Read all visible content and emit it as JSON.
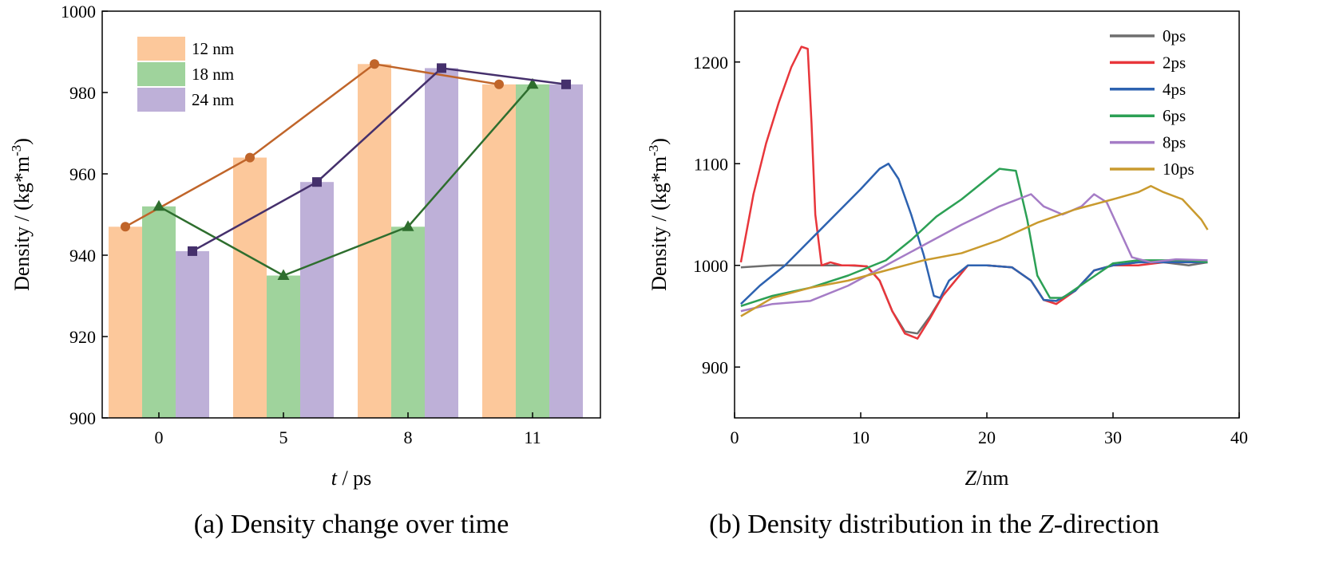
{
  "chart_data": [
    {
      "type": "bar",
      "caption": {
        "prefix": "(a) Density change over time"
      },
      "xlabel": {
        "var": "t",
        "unit": " / ps"
      },
      "ylabel": {
        "text": "Density / (kg*m",
        "sup": "-3",
        "tail": ")"
      },
      "categories": [
        "0",
        "5",
        "8",
        "11"
      ],
      "ylim": [
        900,
        1000
      ],
      "yticks": [
        900,
        920,
        940,
        960,
        980,
        1000
      ],
      "grid": false,
      "legend_position": "top-left",
      "series": [
        {
          "name": "12 nm",
          "color": "#FCC89B",
          "line_color": "#C0652A",
          "marker": "circle",
          "values": [
            947,
            964,
            987,
            982
          ]
        },
        {
          "name": "18 nm",
          "color": "#9FD39C",
          "line_color": "#2E6E2E",
          "marker": "triangle",
          "values": [
            952,
            935,
            947,
            982
          ]
        },
        {
          "name": "24 nm",
          "color": "#BEB0D8",
          "line_color": "#45306C",
          "marker": "square",
          "values": [
            941,
            958,
            986,
            982
          ]
        }
      ]
    },
    {
      "type": "line",
      "caption": {
        "prefix": "(b) Density distribution in the ",
        "var": "Z",
        "suffix": "-direction"
      },
      "xlabel": {
        "var": "Z",
        "unit": "/nm"
      },
      "ylabel": {
        "text": "Density / (kg*m",
        "sup": "-3",
        "tail": ")"
      },
      "xlim": [
        0,
        40
      ],
      "ylim": [
        850,
        1250
      ],
      "xticks": [
        0,
        10,
        20,
        30,
        40
      ],
      "yticks": [
        900,
        1000,
        1100,
        1200
      ],
      "grid": false,
      "legend_position": "top-right",
      "series": [
        {
          "name": "0ps",
          "color": "#6E6E6E",
          "x": [
            0.5,
            3,
            6,
            9,
            10.5,
            11.5,
            12.5,
            13.5,
            14.5,
            15.5,
            16.5,
            17.5,
            18.5,
            20,
            22,
            23.5,
            24.5,
            25.5,
            27,
            28.5,
            30,
            32,
            34,
            36,
            37.5
          ],
          "y": [
            998,
            1000,
            1000,
            1000,
            999,
            985,
            955,
            935,
            933,
            950,
            970,
            985,
            1000,
            1000,
            998,
            985,
            966,
            965,
            975,
            995,
            1000,
            1003,
            1003,
            1000,
            1003
          ]
        },
        {
          "name": "2ps",
          "color": "#E8363B",
          "x": [
            0.5,
            1.5,
            2.5,
            3.5,
            4.5,
            5.3,
            5.8,
            6.1,
            6.4,
            6.9,
            7.6,
            8.5,
            9.5,
            10.5,
            11.5,
            12.5,
            13.5,
            14.5,
            15.5,
            16.5,
            17.5,
            18.5,
            20,
            22,
            23.5,
            24.5,
            25.5,
            27,
            28.5,
            30,
            32,
            34,
            36,
            37.5
          ],
          "y": [
            1003,
            1070,
            1120,
            1160,
            1195,
            1215,
            1213,
            1140,
            1050,
            1000,
            1003,
            1000,
            1000,
            999,
            985,
            955,
            933,
            928,
            948,
            970,
            985,
            1000,
            1000,
            998,
            985,
            966,
            962,
            975,
            995,
            1000,
            1000,
            1003,
            1003,
            1003
          ]
        },
        {
          "name": "4ps",
          "color": "#2D62B0",
          "x": [
            0.5,
            2,
            4,
            6,
            8,
            10,
            11.5,
            12.2,
            13,
            14,
            15,
            15.8,
            16.3,
            17,
            18.5,
            20,
            22,
            23.5,
            24.5,
            25.5,
            27,
            28.5,
            30,
            32,
            34,
            36,
            37.5
          ],
          "y": [
            962,
            980,
            1000,
            1025,
            1050,
            1075,
            1095,
            1100,
            1085,
            1050,
            1010,
            970,
            968,
            985,
            1000,
            1000,
            998,
            985,
            966,
            965,
            975,
            995,
            1000,
            1003,
            1003,
            1003,
            1003
          ]
        },
        {
          "name": "6ps",
          "color": "#2CA055",
          "x": [
            0.5,
            3,
            6,
            9,
            12,
            14,
            16,
            18,
            20,
            21,
            22.3,
            23.2,
            24,
            25,
            26,
            28,
            30,
            32,
            34,
            36,
            37.5
          ],
          "y": [
            960,
            970,
            978,
            990,
            1005,
            1025,
            1048,
            1065,
            1085,
            1095,
            1093,
            1045,
            990,
            968,
            968,
            985,
            1002,
            1005,
            1005,
            1005,
            1003
          ]
        },
        {
          "name": "8ps",
          "color": "#A57CC6",
          "x": [
            0.5,
            3,
            6,
            9,
            12,
            15,
            18,
            21,
            23.5,
            24.5,
            26,
            27.5,
            28.5,
            29.5,
            30.5,
            31.5,
            33,
            35,
            37.5
          ],
          "y": [
            955,
            962,
            965,
            980,
            1000,
            1020,
            1040,
            1058,
            1070,
            1058,
            1050,
            1058,
            1070,
            1062,
            1035,
            1008,
            1003,
            1006,
            1005
          ]
        },
        {
          "name": "10ps",
          "color": "#C99A2E",
          "x": [
            0.5,
            3,
            6,
            9,
            12,
            15,
            18,
            21,
            24,
            27,
            30,
            32,
            33,
            34,
            35.5,
            37,
            37.5
          ],
          "y": [
            950,
            968,
            978,
            985,
            995,
            1005,
            1012,
            1025,
            1042,
            1055,
            1065,
            1072,
            1078,
            1072,
            1065,
            1045,
            1035
          ]
        }
      ]
    }
  ]
}
